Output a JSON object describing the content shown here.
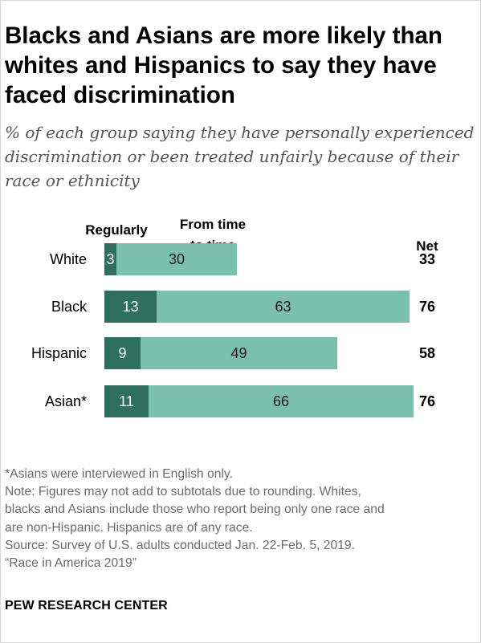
{
  "title": "Blacks and Asians are more likely than whites and Hispanics to say they have faced discrimination",
  "subtitle": "% of each group saying they have personally experienced discrimination or been treated unfairly because of their race or ethnicity",
  "chart_data": {
    "type": "bar",
    "orientation": "horizontal",
    "stacked": true,
    "categories": [
      "White",
      "Black",
      "Hispanic",
      "Asian*"
    ],
    "series": [
      {
        "name": "Regularly",
        "values": [
          3,
          13,
          9,
          11
        ],
        "color": "#2f6f5e"
      },
      {
        "name": "From time to time",
        "values": [
          30,
          63,
          49,
          66
        ],
        "color": "#7bbfad"
      }
    ],
    "net": {
      "label": "Net",
      "values": [
        33,
        76,
        58,
        76
      ]
    },
    "legend_placement": "top",
    "grid": false
  },
  "notes": [
    "*Asians were interviewed in English only.",
    "Note: Figures may not add to subtotals due to rounding. Whites,",
    "blacks and Asians include those who report being only one race and",
    "are non-Hispanic. Hispanics are of any race.",
    "Source: Survey of U.S. adults conducted Jan. 22-Feb. 5, 2019.",
    "“Race in America 2019”"
  ],
  "footer": "PEW RESEARCH CENTER"
}
